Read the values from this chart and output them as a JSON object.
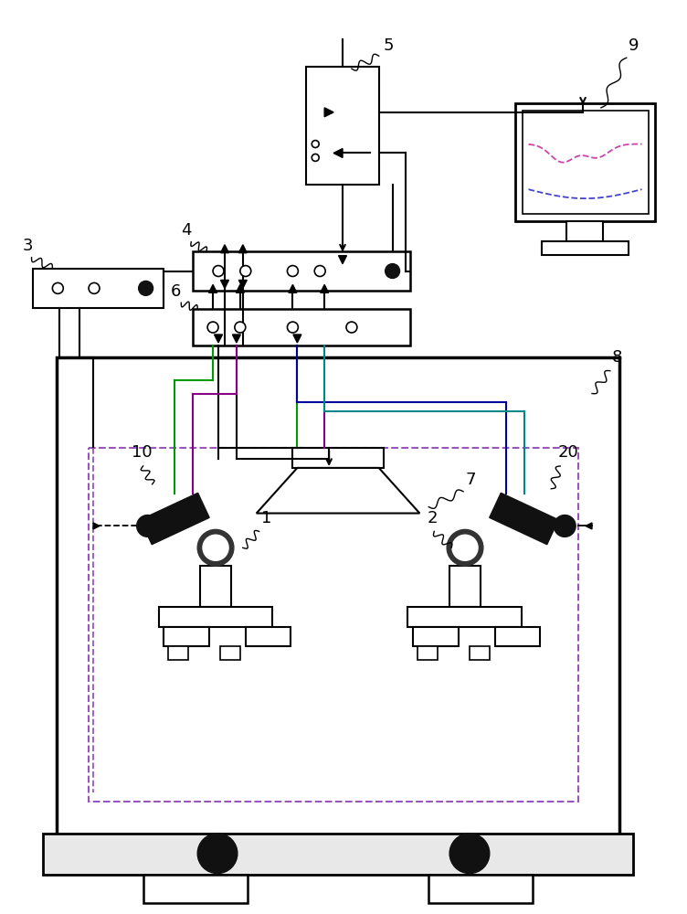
{
  "bg_color": "#ffffff",
  "lc": "#000000",
  "fig_width": 7.52,
  "fig_height": 10.0,
  "dpi": 100
}
